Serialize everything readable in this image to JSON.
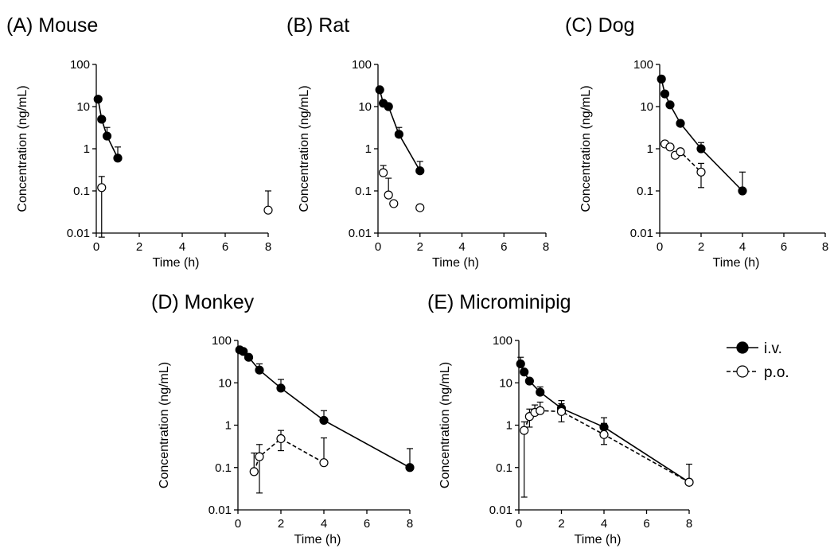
{
  "legend": {
    "iv_label": "i.v.",
    "po_label": "p.o."
  },
  "colors": {
    "iv_marker_fill": "#000000",
    "po_marker_fill": "#ffffff",
    "line": "#000000"
  },
  "chart_data": [
    {
      "type": "line",
      "title": "(A) Mouse",
      "xlabel": "Time (h)",
      "ylabel": "Concentration (ng/mL)",
      "xlim": [
        0,
        8
      ],
      "ylim": [
        0.01,
        100
      ],
      "yscale": "log",
      "xticks": [
        "0",
        "2",
        "4",
        "6",
        "8"
      ],
      "yticks": [
        "0.01",
        "0.1",
        "1",
        "10",
        "100"
      ],
      "series": [
        {
          "name": "i.v.",
          "x": [
            0.083,
            0.25,
            0.5,
            1
          ],
          "y": [
            15,
            5,
            2,
            0.6
          ],
          "err_upper": [
            null,
            null,
            3.2,
            1.1
          ]
        },
        {
          "name": "p.o.",
          "x": [
            0.25,
            8
          ],
          "y": [
            0.12,
            0.035
          ],
          "err_upper": [
            0.22,
            0.1
          ],
          "err_lower": [
            0.008,
            null
          ],
          "connected": false
        }
      ]
    },
    {
      "type": "line",
      "title": "(B) Rat",
      "xlabel": "Time (h)",
      "ylabel": "Concentration (ng/mL)",
      "xlim": [
        0,
        8
      ],
      "ylim": [
        0.01,
        100
      ],
      "yscale": "log",
      "xticks": [
        "0",
        "2",
        "4",
        "6",
        "8"
      ],
      "yticks": [
        "0.01",
        "0.1",
        "1",
        "10",
        "100"
      ],
      "series": [
        {
          "name": "i.v.",
          "x": [
            0.083,
            0.25,
            0.5,
            1,
            2
          ],
          "y": [
            25,
            12,
            10,
            2.2,
            0.3
          ],
          "err_upper": [
            null,
            null,
            null,
            3.2,
            0.5
          ]
        },
        {
          "name": "p.o.",
          "x": [
            0.25,
            0.5,
            0.75,
            2
          ],
          "y": [
            0.27,
            0.08,
            0.05,
            0.04
          ],
          "err_upper": [
            0.4,
            0.2,
            null,
            null
          ],
          "connected": false
        }
      ]
    },
    {
      "type": "line",
      "title": "(C) Dog",
      "xlabel": "Time (h)",
      "ylabel": "Concentration (ng/mL)",
      "xlim": [
        0,
        8
      ],
      "ylim": [
        0.01,
        100
      ],
      "yscale": "log",
      "xticks": [
        "0",
        "2",
        "4",
        "6",
        "8"
      ],
      "yticks": [
        "0.01",
        "0.1",
        "1",
        "10",
        "100"
      ],
      "series": [
        {
          "name": "i.v.",
          "x": [
            0.083,
            0.25,
            0.5,
            1,
            2,
            4
          ],
          "y": [
            45,
            20,
            11,
            4,
            1,
            0.1
          ],
          "err_upper": [
            null,
            null,
            null,
            null,
            1.4,
            0.28
          ]
        },
        {
          "name": "p.o.",
          "x": [
            0.25,
            0.5,
            0.75,
            1,
            2
          ],
          "y": [
            1.3,
            1.1,
            0.7,
            0.85,
            0.28
          ],
          "err_upper": [
            null,
            null,
            null,
            null,
            0.45
          ],
          "err_lower": [
            null,
            null,
            null,
            null,
            0.12
          ],
          "connected": true
        }
      ]
    },
    {
      "type": "line",
      "title": "(D) Monkey",
      "xlabel": "Time (h)",
      "ylabel": "Concentration (ng/mL)",
      "xlim": [
        0,
        8
      ],
      "ylim": [
        0.01,
        100
      ],
      "yscale": "log",
      "xticks": [
        "0",
        "2",
        "4",
        "6",
        "8"
      ],
      "yticks": [
        "0.01",
        "0.1",
        "1",
        "10",
        "100"
      ],
      "series": [
        {
          "name": "i.v.",
          "x": [
            0.083,
            0.25,
            0.5,
            1,
            2,
            4,
            8
          ],
          "y": [
            60,
            55,
            40,
            20,
            7.5,
            1.3,
            0.1
          ],
          "err_upper": [
            null,
            null,
            null,
            28,
            12,
            2.2,
            0.28
          ]
        },
        {
          "name": "p.o.",
          "x": [
            0.75,
            1,
            2,
            4
          ],
          "y": [
            0.08,
            0.18,
            0.48,
            0.13
          ],
          "err_upper": [
            0.22,
            0.35,
            0.75,
            0.5
          ],
          "err_lower": [
            null,
            0.025,
            0.25,
            null
          ],
          "connected": true
        }
      ]
    },
    {
      "type": "line",
      "title": "(E) Microminipig",
      "xlabel": "Time (h)",
      "ylabel": "Concentration (ng/mL)",
      "xlim": [
        0,
        8
      ],
      "ylim": [
        0.01,
        100
      ],
      "yscale": "log",
      "xticks": [
        "0",
        "2",
        "4",
        "6",
        "8"
      ],
      "yticks": [
        "0.01",
        "0.1",
        "1",
        "10",
        "100"
      ],
      "series": [
        {
          "name": "i.v.",
          "x": [
            0.083,
            0.25,
            0.5,
            1,
            2,
            4,
            8
          ],
          "y": [
            28,
            18,
            11,
            6,
            2.5,
            0.9,
            0.045
          ],
          "err_upper": [
            40,
            null,
            null,
            8,
            3.8,
            1.5,
            0.12
          ]
        },
        {
          "name": "p.o.",
          "x": [
            0.25,
            0.5,
            0.75,
            1,
            2,
            4,
            8
          ],
          "y": [
            0.75,
            1.6,
            2,
            2.2,
            2.1,
            0.6,
            0.045
          ],
          "err_upper": [
            1.2,
            2.4,
            3,
            3.5,
            3.2,
            1.1,
            null
          ],
          "err_lower": [
            0.02,
            0.9,
            null,
            null,
            1.2,
            0.35,
            null
          ],
          "connected": true
        }
      ]
    }
  ]
}
